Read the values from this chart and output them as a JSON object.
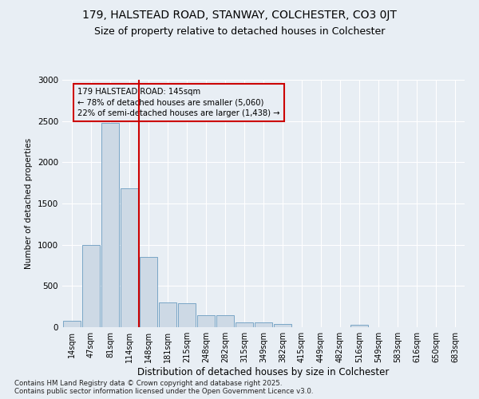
{
  "title1": "179, HALSTEAD ROAD, STANWAY, COLCHESTER, CO3 0JT",
  "title2": "Size of property relative to detached houses in Colchester",
  "xlabel": "Distribution of detached houses by size in Colchester",
  "ylabel": "Number of detached properties",
  "categories": [
    "14sqm",
    "47sqm",
    "81sqm",
    "114sqm",
    "148sqm",
    "181sqm",
    "215sqm",
    "248sqm",
    "282sqm",
    "315sqm",
    "349sqm",
    "382sqm",
    "415sqm",
    "449sqm",
    "482sqm",
    "516sqm",
    "549sqm",
    "583sqm",
    "616sqm",
    "650sqm",
    "683sqm"
  ],
  "values": [
    75,
    1000,
    2480,
    1680,
    850,
    300,
    290,
    150,
    150,
    60,
    55,
    40,
    0,
    0,
    0,
    30,
    0,
    0,
    0,
    0,
    0
  ],
  "bar_color": "#cdd9e5",
  "bar_edge_color": "#6a9cc0",
  "vline_color": "#cc0000",
  "vline_x_index": 4,
  "annotation_title": "179 HALSTEAD ROAD: 145sqm",
  "annotation_line1": "← 78% of detached houses are smaller (5,060)",
  "annotation_line2": "22% of semi-detached houses are larger (1,438) →",
  "annotation_box_edgecolor": "#cc0000",
  "footer1": "Contains HM Land Registry data © Crown copyright and database right 2025.",
  "footer2": "Contains public sector information licensed under the Open Government Licence v3.0.",
  "ylim": [
    0,
    3000
  ],
  "yticks": [
    0,
    500,
    1000,
    1500,
    2000,
    2500,
    3000
  ],
  "background_color": "#e8eef4",
  "grid_color": "#ffffff",
  "title_fontsize": 10,
  "subtitle_fontsize": 9
}
